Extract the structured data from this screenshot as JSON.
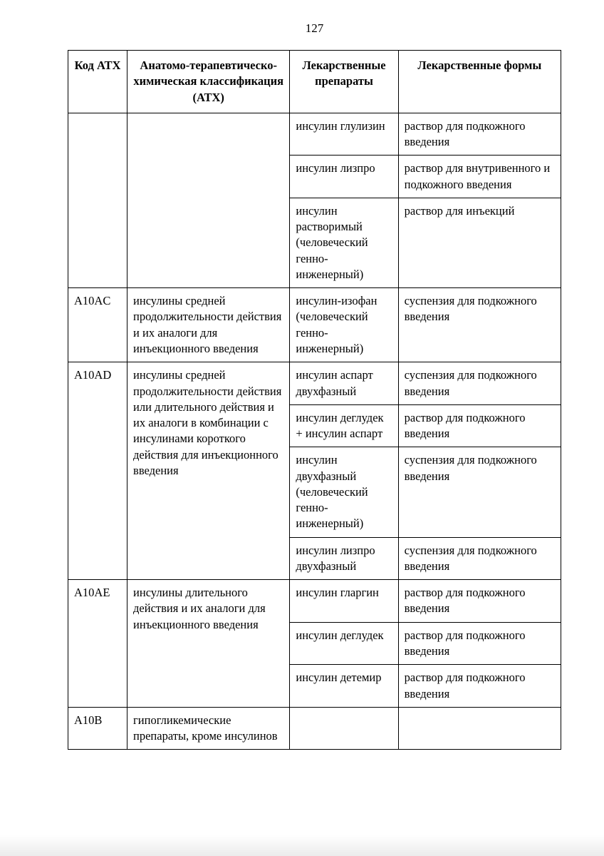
{
  "page_number": "127",
  "table": {
    "columns": [
      "Код АТХ",
      "Анатомо-терапевтическо-химическая классификация (АТХ)",
      "Лекарственные препараты",
      "Лекарственные формы"
    ],
    "column_widths_pct": [
      12,
      33,
      22,
      33
    ],
    "border_color": "#000000",
    "background_color": "#ffffff",
    "font_family": "Times New Roman",
    "header_fontsize": 17,
    "cell_fontsize": 16.5,
    "rows": [
      {
        "code": "",
        "classification": "",
        "drug": "инсулин глулизин",
        "form": "раствор для подкожного введения",
        "code_rowspan": 3,
        "class_rowspan": 3
      },
      {
        "drug": "инсулин лизпро",
        "form": "раствор для внутривенного и подкожного введения"
      },
      {
        "drug": "инсулин растворимый (человеческий генно-инженерный)",
        "form": "раствор для инъекций"
      },
      {
        "code": "A10AC",
        "classification": "инсулины средней продолжительности действия и их аналоги для инъекционного введения",
        "drug": "инсулин-изофан (человеческий генно-инженерный)",
        "form": "суспензия для подкожного введения",
        "code_rowspan": 1,
        "class_rowspan": 1
      },
      {
        "code": "A10AD",
        "classification": "инсулины средней продолжительности действия или длительного действия и их аналоги в комбинации с инсулинами короткого действия для инъекционного введения",
        "drug": "инсулин аспарт двухфазный",
        "form": "суспензия для подкожного введения",
        "code_rowspan": 4,
        "class_rowspan": 4
      },
      {
        "drug": "инсулин деглудек + инсулин аспарт",
        "form": "раствор для подкожного введения"
      },
      {
        "drug": "инсулин двухфазный (человеческий генно-инженерный)",
        "form": "суспензия для подкожного введения"
      },
      {
        "drug": "инсулин лизпро двухфазный",
        "form": "суспензия для подкожного введения"
      },
      {
        "code": "A10AE",
        "classification": "инсулины длительного действия и их аналоги для инъекционного введения",
        "drug": "инсулин гларгин",
        "form": "раствор для подкожного введения",
        "code_rowspan": 3,
        "class_rowspan": 3
      },
      {
        "drug": "инсулин деглудек",
        "form": "раствор для подкожного введения"
      },
      {
        "drug": "инсулин детемир",
        "form": "раствор для подкожного введения"
      },
      {
        "code": "A10B",
        "classification": "гипогликемические препараты, кроме инсулинов",
        "drug": "",
        "form": "",
        "code_rowspan": 1,
        "class_rowspan": 1
      }
    ]
  }
}
